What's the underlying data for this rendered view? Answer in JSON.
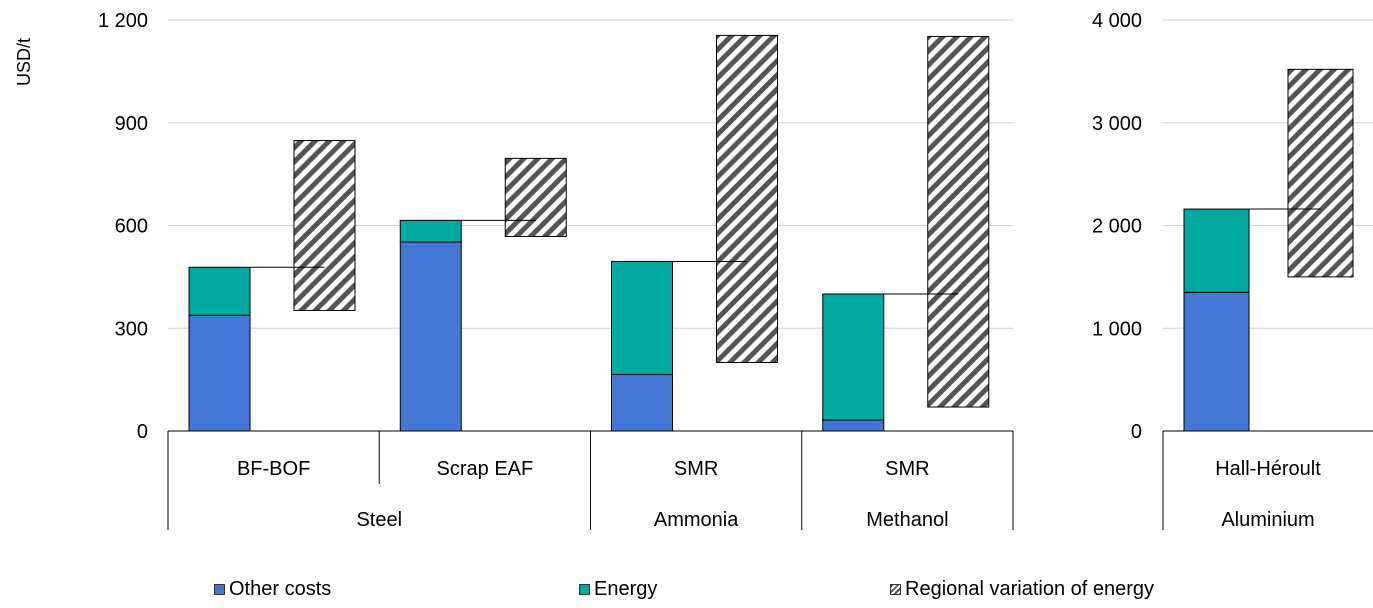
{
  "chart_data": {
    "type": "bar",
    "stacked": true,
    "ylabel": "USD/t",
    "panels": [
      {
        "id": "left",
        "ylim": [
          0,
          1200
        ],
        "yticks": [
          "0",
          "300",
          "600",
          "900",
          "1 200"
        ],
        "ytick_values": [
          0,
          300,
          600,
          900,
          1200
        ],
        "categories": [
          "BF-BOF",
          "Scrap EAF",
          "SMR",
          "SMR"
        ],
        "groups": [
          {
            "label": "Steel",
            "span": 2
          },
          {
            "label": "Ammonia",
            "span": 1
          },
          {
            "label": "Methanol",
            "span": 1
          }
        ],
        "series": [
          {
            "name": "Other costs",
            "values": [
              338,
              552,
              165,
              32
            ]
          },
          {
            "name": "Energy",
            "values": [
              140,
              63,
              330,
              368
            ]
          }
        ],
        "regional_variation": [
          [
            352,
            848
          ],
          [
            568,
            796
          ],
          [
            200,
            1155
          ],
          [
            70,
            1152
          ]
        ]
      },
      {
        "id": "right",
        "ylim": [
          0,
          4000
        ],
        "yticks": [
          "0",
          "1 000",
          "2 000",
          "3 000",
          "4 000"
        ],
        "ytick_values": [
          0,
          1000,
          2000,
          3000,
          4000
        ],
        "categories": [
          "Hall-Héroult"
        ],
        "groups": [
          {
            "label": "Aluminium",
            "span": 1
          }
        ],
        "series": [
          {
            "name": "Other costs",
            "values": [
              1350
            ]
          },
          {
            "name": "Energy",
            "values": [
              810
            ]
          }
        ],
        "regional_variation": [
          [
            1500,
            3520
          ]
        ]
      }
    ],
    "legend": [
      {
        "label": "Other costs",
        "color": "#4477d5"
      },
      {
        "label": "Energy",
        "color": "#00aaa0"
      },
      {
        "label": "Regional variation of energy",
        "pattern": "hatch"
      }
    ],
    "legend_position": "bottom",
    "grid": true
  }
}
